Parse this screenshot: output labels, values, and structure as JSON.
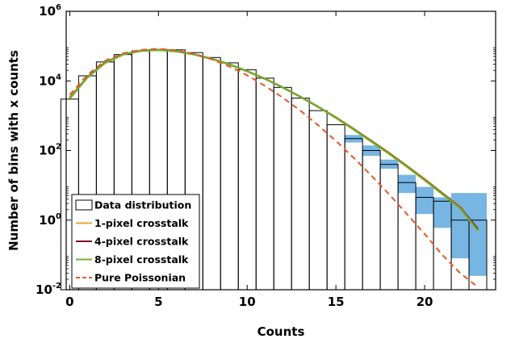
{
  "chart_data": {
    "type": "bar",
    "title": "",
    "xlabel": "Counts",
    "ylabel": "Number of bins with x counts",
    "xlim": [
      -0.2,
      24
    ],
    "ylim_log10": [
      -2,
      6
    ],
    "y_scale": "log",
    "x_ticks": [
      "0",
      "5",
      "10",
      "15",
      "20"
    ],
    "x_tick_values": [
      0,
      5,
      10,
      15,
      20
    ],
    "y_tick_exponents": [
      -2,
      0,
      2,
      4,
      6
    ],
    "y_tick_base": "10",
    "grid": false,
    "legend_position": "bottom-left",
    "bins": {
      "name": "Data distribution",
      "x": [
        0,
        1,
        2,
        3,
        4,
        5,
        6,
        7,
        8,
        9,
        10,
        11,
        12,
        13,
        14,
        15,
        16,
        17,
        18,
        19,
        20,
        21,
        22,
        23
      ],
      "values": [
        3000,
        14000,
        35000,
        57000,
        73000,
        80000,
        78000,
        65000,
        47000,
        33000,
        21000,
        12000,
        6500,
        3200,
        1400,
        550,
        220,
        100,
        40,
        12,
        4.5,
        3.5,
        1,
        1
      ]
    },
    "error_bands": {
      "color": "#5fa8de",
      "x": [
        16,
        17,
        18,
        19,
        20,
        21,
        22,
        23
      ],
      "lower": [
        170,
        70,
        30,
        6,
        1.5,
        0.6,
        0.08,
        0.025
      ],
      "upper": [
        280,
        140,
        55,
        20,
        9,
        4.5,
        6,
        6
      ]
    },
    "series": [
      {
        "name": "1-pixel crosstalk",
        "color": "#eda92a",
        "style": "solid",
        "x": [
          0,
          1,
          2,
          3,
          4,
          5,
          6,
          7,
          8,
          9,
          10,
          11,
          12,
          13,
          14,
          15,
          16,
          17,
          18,
          19,
          20,
          21,
          22,
          23
        ],
        "values": [
          3300,
          13000,
          34000,
          58000,
          74000,
          78000,
          71000,
          58000,
          43000,
          30000,
          19000,
          11500,
          6500,
          3500,
          1800,
          900,
          420,
          190,
          85,
          36,
          15,
          6,
          2.4,
          0.5
        ]
      },
      {
        "name": "4-pixel crosstalk",
        "color": "#7b1320",
        "style": "solid",
        "x": [
          0,
          1,
          2,
          3,
          4,
          5,
          6,
          7,
          8,
          9,
          10,
          11,
          12,
          13,
          14,
          15,
          16,
          17,
          18,
          19,
          20,
          21,
          22,
          23
        ],
        "values": [
          3200,
          12800,
          33500,
          57500,
          73500,
          77800,
          71000,
          58000,
          43000,
          30000,
          19000,
          11500,
          6500,
          3500,
          1800,
          880,
          410,
          185,
          82,
          35,
          14.5,
          5.8,
          2.3,
          0.55
        ]
      },
      {
        "name": "8-pixel crosstalk",
        "color": "#77ad2d",
        "style": "solid",
        "x": [
          0,
          1,
          2,
          3,
          4,
          5,
          6,
          7,
          8,
          9,
          10,
          11,
          12,
          13,
          14,
          15,
          16,
          17,
          18,
          19,
          20,
          21,
          22,
          23
        ],
        "values": [
          3100,
          12600,
          33000,
          57000,
          73000,
          77500,
          71000,
          58000,
          43000,
          30000,
          19000,
          11500,
          6500,
          3500,
          1800,
          870,
          400,
          180,
          80,
          34,
          14,
          5.6,
          2.2,
          0.5
        ]
      },
      {
        "name": "Pure Poissonian",
        "color": "#e05a2a",
        "style": "dashed",
        "x": [
          0,
          1,
          2,
          3,
          4,
          5,
          6,
          7,
          8,
          9,
          10,
          11,
          12,
          13,
          14,
          15,
          16,
          17,
          18,
          19,
          20,
          21,
          22,
          23
        ],
        "values": [
          4000,
          15000,
          38000,
          62000,
          78000,
          84000,
          76000,
          60000,
          42000,
          26000,
          14500,
          7200,
          3300,
          1400,
          530,
          190,
          62,
          19,
          5.5,
          1.5,
          0.4,
          0.1,
          0.03,
          0.012
        ]
      }
    ]
  }
}
